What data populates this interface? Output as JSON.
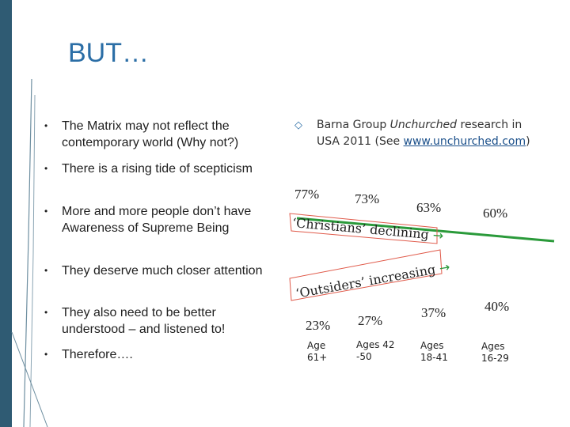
{
  "slide": {
    "title": "BUT…",
    "bullets": [
      "The Matrix may not reflect the contemporary world (Why not?)",
      "There is a rising tide of scepticism",
      "More and more people don’t have Awareness of Supreme Being",
      "They deserve much closer attention",
      "They also need to be better understood – and listened to!",
      "Therefore…."
    ],
    "bullet_symbol": "•",
    "right_bullet": {
      "symbol": "◇",
      "text_before": "Barna Group ",
      "italic": "Unchurched",
      "text_after": " research in USA 2011 (See ",
      "link": "www.unchurched.com",
      "text_end": ")"
    },
    "christians_label": "‘Christians’ declining",
    "outsiders_label": "‘Outsiders’ increasing",
    "arrow": "→",
    "christians_pcts": [
      "77%",
      "73%",
      "63%",
      "60%"
    ],
    "outsiders_pcts": [
      "23%",
      "27%",
      "37%",
      "40%"
    ],
    "ages": [
      {
        "line1": "Age",
        "line2": "61+"
      },
      {
        "line1": "Ages 42",
        "line2": "-50"
      },
      {
        "line1": "Ages",
        "line2": "18-41"
      },
      {
        "line1": "Ages",
        "line2": "16-29"
      }
    ],
    "colors": {
      "accent": "#2b6ea6",
      "green_line": "#2a9a3a",
      "red_outline": "#e05a4a"
    }
  }
}
